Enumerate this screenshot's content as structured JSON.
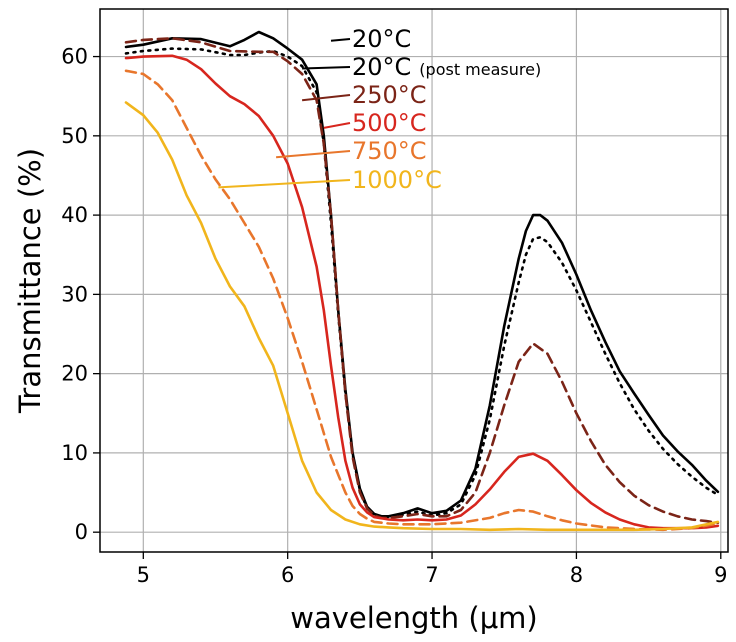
{
  "chart_data": {
    "type": "line",
    "xlabel": "wavelength (μm)",
    "ylabel": "Transmittance (%)",
    "xlim": [
      4.7,
      9.05
    ],
    "ylim": [
      -2.5,
      66
    ],
    "xticks": [
      5,
      6,
      7,
      8,
      9
    ],
    "yticks": [
      0,
      10,
      20,
      30,
      40,
      50,
      60
    ],
    "grid": true,
    "legend_placement": "top-center, inline labels with leader lines",
    "series": [
      {
        "name": "20°C",
        "note": "",
        "color": "#000000",
        "dash": "solid",
        "x": [
          4.88,
          5.0,
          5.2,
          5.4,
          5.6,
          5.7,
          5.8,
          5.9,
          6.0,
          6.1,
          6.2,
          6.25,
          6.3,
          6.35,
          6.4,
          6.45,
          6.5,
          6.55,
          6.6,
          6.65,
          6.7,
          6.8,
          6.9,
          7.0,
          7.1,
          7.2,
          7.3,
          7.4,
          7.5,
          7.6,
          7.65,
          7.7,
          7.75,
          7.8,
          7.9,
          8.0,
          8.1,
          8.2,
          8.3,
          8.4,
          8.5,
          8.6,
          8.7,
          8.8,
          8.9,
          8.98
        ],
        "y": [
          61.2,
          61.5,
          62.3,
          62.2,
          61.3,
          62.1,
          63.1,
          62.3,
          61.0,
          59.6,
          56.5,
          50.0,
          40.0,
          28.0,
          18.0,
          10.0,
          5.5,
          3.2,
          2.3,
          2.0,
          2.0,
          2.4,
          3.0,
          2.4,
          2.7,
          4.0,
          8.0,
          16.0,
          26.0,
          34.5,
          38.0,
          40.0,
          40.0,
          39.3,
          36.5,
          32.5,
          28.0,
          24.0,
          20.3,
          17.5,
          14.8,
          12.2,
          10.2,
          8.5,
          6.5,
          5.1
        ]
      },
      {
        "name": "20°C",
        "note": "(post measure)",
        "color": "#000000",
        "dash": "dotted",
        "x": [
          4.88,
          5.0,
          5.2,
          5.4,
          5.6,
          5.7,
          5.8,
          5.9,
          6.0,
          6.1,
          6.2,
          6.25,
          6.3,
          6.35,
          6.4,
          6.45,
          6.5,
          6.55,
          6.6,
          6.65,
          6.7,
          6.8,
          6.9,
          7.0,
          7.1,
          7.2,
          7.3,
          7.4,
          7.5,
          7.6,
          7.65,
          7.7,
          7.75,
          7.8,
          7.9,
          8.0,
          8.1,
          8.2,
          8.3,
          8.4,
          8.5,
          8.6,
          8.7,
          8.8,
          8.9,
          8.98
        ],
        "y": [
          60.4,
          60.7,
          61.0,
          60.9,
          60.2,
          60.2,
          60.5,
          60.7,
          60.0,
          58.8,
          55.5,
          49.0,
          39.0,
          27.5,
          17.5,
          9.8,
          5.3,
          3.0,
          2.2,
          1.9,
          1.9,
          2.2,
          2.6,
          2.1,
          2.4,
          3.5,
          7.2,
          14.2,
          23.5,
          31.5,
          35.0,
          37.0,
          37.2,
          36.6,
          34.0,
          30.5,
          26.5,
          22.5,
          18.8,
          15.5,
          12.8,
          10.5,
          8.6,
          7.0,
          5.6,
          4.7
        ]
      },
      {
        "name": "250°C",
        "note": "",
        "color": "#7b2417",
        "dash": "dashed",
        "x": [
          4.88,
          5.0,
          5.2,
          5.4,
          5.6,
          5.8,
          5.9,
          6.0,
          6.1,
          6.2,
          6.25,
          6.3,
          6.35,
          6.4,
          6.45,
          6.5,
          6.55,
          6.6,
          6.65,
          6.7,
          6.8,
          6.9,
          7.0,
          7.1,
          7.2,
          7.3,
          7.4,
          7.5,
          7.6,
          7.7,
          7.8,
          7.9,
          8.0,
          8.1,
          8.2,
          8.3,
          8.4,
          8.5,
          8.6,
          8.7,
          8.8,
          8.9,
          8.98
        ],
        "y": [
          61.8,
          62.1,
          62.3,
          61.8,
          60.7,
          60.6,
          60.6,
          59.4,
          57.8,
          54.5,
          49.0,
          40.0,
          28.0,
          17.5,
          9.5,
          5.0,
          3.0,
          2.1,
          1.8,
          1.8,
          2.0,
          2.3,
          2.0,
          2.0,
          2.8,
          5.0,
          10.0,
          16.0,
          21.5,
          23.8,
          22.5,
          19.0,
          15.0,
          11.5,
          8.5,
          6.3,
          4.6,
          3.4,
          2.6,
          2.0,
          1.6,
          1.4,
          1.2
        ]
      },
      {
        "name": "500°C",
        "note": "",
        "color": "#d7261e",
        "dash": "solid",
        "x": [
          4.88,
          5.0,
          5.2,
          5.3,
          5.4,
          5.5,
          5.6,
          5.7,
          5.8,
          5.9,
          6.0,
          6.1,
          6.2,
          6.25,
          6.3,
          6.35,
          6.4,
          6.45,
          6.5,
          6.55,
          6.6,
          6.7,
          6.8,
          6.9,
          7.0,
          7.1,
          7.2,
          7.3,
          7.4,
          7.5,
          7.6,
          7.7,
          7.8,
          7.9,
          8.0,
          8.1,
          8.2,
          8.3,
          8.4,
          8.5,
          8.6,
          8.7,
          8.8,
          8.9,
          8.98
        ],
        "y": [
          59.8,
          60.0,
          60.1,
          59.6,
          58.4,
          56.6,
          55.0,
          54.0,
          52.5,
          50.0,
          46.5,
          41.0,
          33.5,
          28.0,
          21.0,
          14.5,
          9.0,
          5.6,
          3.5,
          2.5,
          1.9,
          1.6,
          1.5,
          1.6,
          1.5,
          1.6,
          2.1,
          3.5,
          5.4,
          7.6,
          9.5,
          9.9,
          9.0,
          7.2,
          5.3,
          3.7,
          2.5,
          1.6,
          1.0,
          0.6,
          0.5,
          0.5,
          0.5,
          0.6,
          0.8
        ]
      },
      {
        "name": "750°C",
        "note": "",
        "color": "#e8762c",
        "dash": "dashed",
        "x": [
          4.88,
          5.0,
          5.1,
          5.2,
          5.3,
          5.4,
          5.5,
          5.6,
          5.7,
          5.8,
          5.9,
          6.0,
          6.1,
          6.2,
          6.3,
          6.4,
          6.45,
          6.5,
          6.55,
          6.6,
          6.7,
          6.8,
          6.9,
          7.0,
          7.2,
          7.4,
          7.5,
          7.6,
          7.7,
          7.8,
          7.9,
          8.0,
          8.2,
          8.4,
          8.6,
          8.8,
          8.98
        ],
        "y": [
          58.2,
          57.8,
          56.5,
          54.5,
          51.0,
          47.5,
          44.5,
          42.0,
          39.0,
          36.0,
          32.0,
          27.0,
          21.5,
          15.5,
          9.5,
          5.0,
          3.3,
          2.3,
          1.7,
          1.3,
          1.1,
          1.0,
          1.0,
          1.0,
          1.2,
          1.8,
          2.4,
          2.8,
          2.6,
          2.0,
          1.5,
          1.1,
          0.6,
          0.4,
          0.3,
          0.5,
          1.1
        ]
      },
      {
        "name": "1000°C",
        "note": "",
        "color": "#f1b51c",
        "dash": "solid",
        "x": [
          4.88,
          5.0,
          5.1,
          5.2,
          5.3,
          5.4,
          5.5,
          5.6,
          5.7,
          5.8,
          5.9,
          6.0,
          6.1,
          6.2,
          6.3,
          6.4,
          6.5,
          6.6,
          6.7,
          6.8,
          7.0,
          7.2,
          7.4,
          7.6,
          7.8,
          8.0,
          8.2,
          8.4,
          8.6,
          8.8,
          8.98
        ],
        "y": [
          54.2,
          52.6,
          50.4,
          47.0,
          42.5,
          39.0,
          34.5,
          31.0,
          28.5,
          24.5,
          21.0,
          15.0,
          9.0,
          5.0,
          2.8,
          1.6,
          1.0,
          0.7,
          0.6,
          0.5,
          0.4,
          0.4,
          0.3,
          0.4,
          0.3,
          0.3,
          0.3,
          0.3,
          0.4,
          0.6,
          1.3
        ]
      }
    ]
  },
  "legend_layout": [
    {
      "anchor_x": 6.3,
      "anchor_y": 62.0
    },
    {
      "anchor_x": 6.1,
      "anchor_y": 58.5
    },
    {
      "anchor_x": 6.1,
      "anchor_y": 54.5
    },
    {
      "anchor_x": 6.25,
      "anchor_y": 51.0
    },
    {
      "anchor_x": 5.92,
      "anchor_y": 47.3
    },
    {
      "anchor_x": 5.52,
      "anchor_y": 43.5
    }
  ]
}
